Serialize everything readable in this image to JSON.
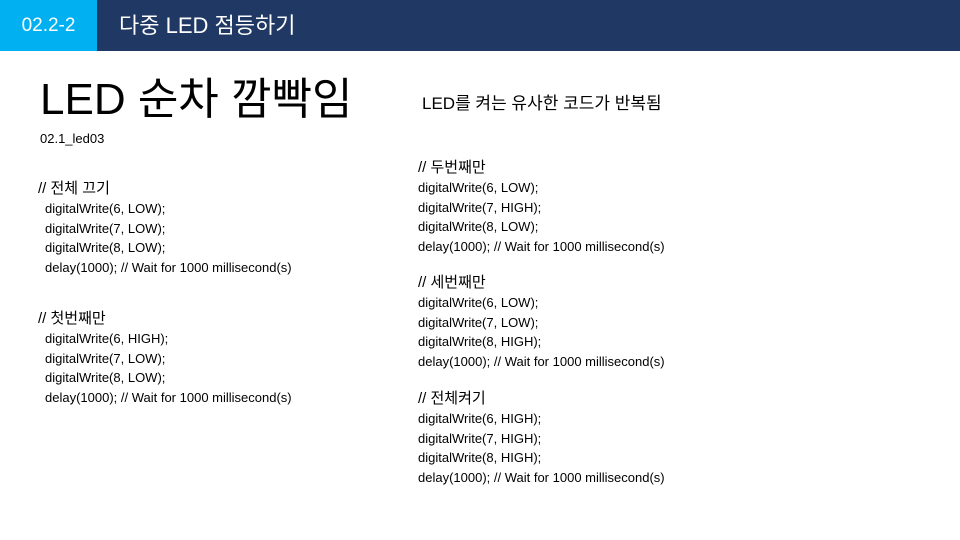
{
  "header": {
    "section_number": "02.2-2",
    "title": "다중 LED 점등하기"
  },
  "main": {
    "title": "LED 순차 깜빡임",
    "subtitle": "LED를 켜는 유사한 코드가 반복됨",
    "file_name": "02.1_led03"
  },
  "code_blocks": {
    "all_off": {
      "comment": "// 전체 끄기",
      "lines": [
        "digitalWrite(6, LOW);",
        "digitalWrite(7, LOW);",
        "digitalWrite(8, LOW);",
        "delay(1000); // Wait for 1000 millisecond(s)"
      ]
    },
    "first": {
      "comment": "// 첫번째만",
      "lines": [
        "digitalWrite(6, HIGH);",
        "digitalWrite(7, LOW);",
        "digitalWrite(8, LOW);",
        "delay(1000); // Wait for 1000 millisecond(s)"
      ]
    },
    "second": {
      "comment": "// 두번째만",
      "lines": [
        "digitalWrite(6, LOW);",
        "digitalWrite(7, HIGH);",
        "digitalWrite(8, LOW);",
        "delay(1000); // Wait for 1000 millisecond(s)"
      ]
    },
    "third": {
      "comment": "// 세번째만",
      "lines": [
        "digitalWrite(6, LOW);",
        "digitalWrite(7, LOW);",
        "digitalWrite(8, HIGH);",
        "delay(1000); // Wait for 1000 millisecond(s)"
      ]
    },
    "all_on": {
      "comment": "// 전체켜기",
      "lines": [
        "digitalWrite(6, HIGH);",
        "digitalWrite(7, HIGH);",
        "digitalWrite(8, HIGH);",
        "delay(1000); // Wait for 1000 millisecond(s)"
      ]
    }
  },
  "colors": {
    "header_bg": "#1f3864",
    "section_bg": "#00b0f0",
    "header_text": "#ffffff",
    "body_text": "#000000"
  }
}
